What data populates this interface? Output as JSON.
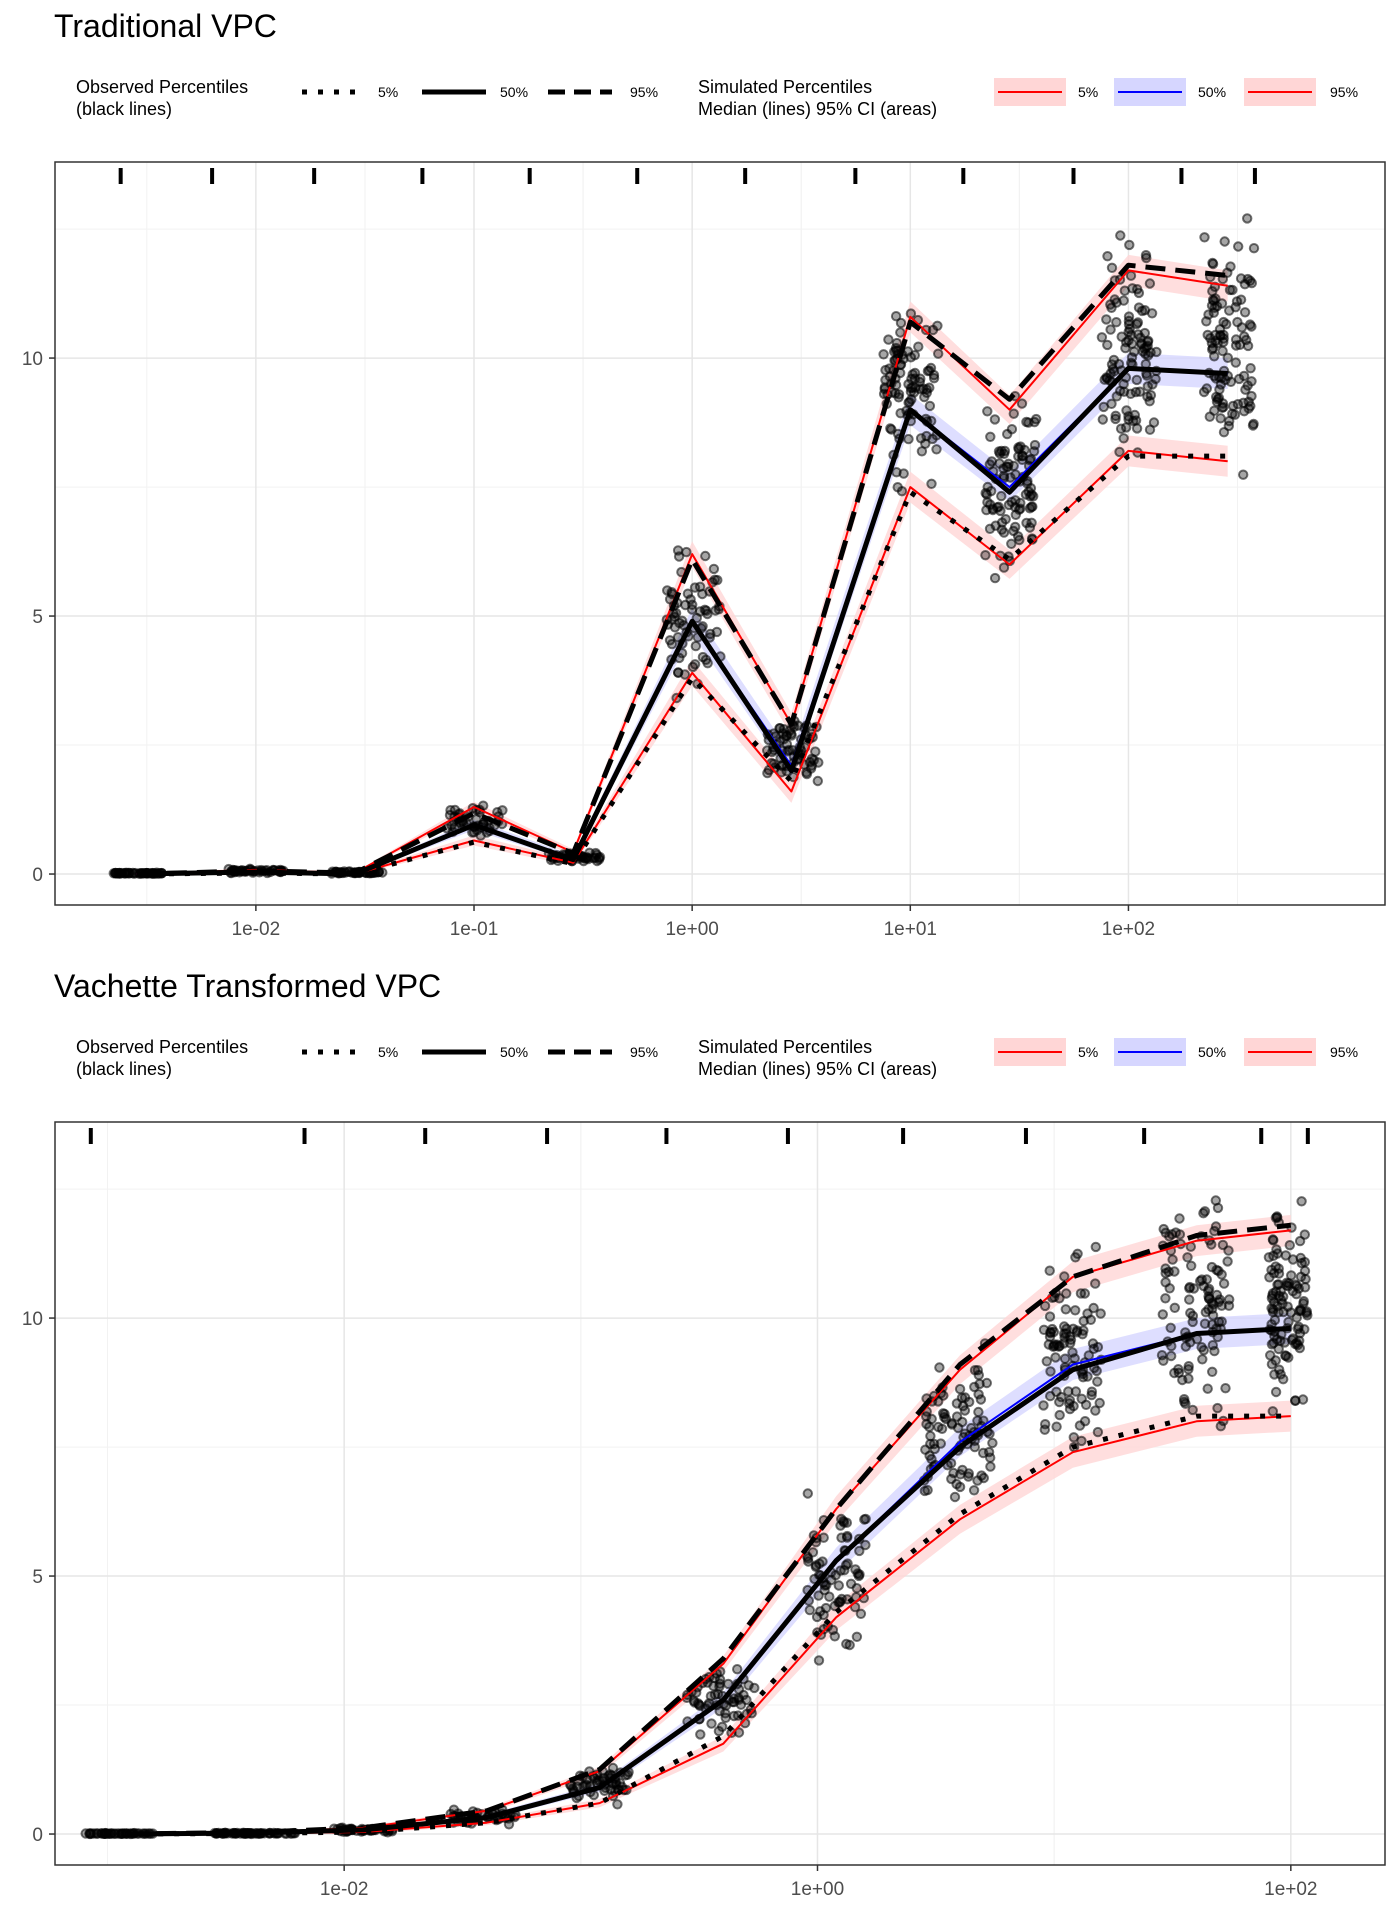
{
  "chart_data": [
    {
      "type": "line",
      "title": "Traditional VPC",
      "xlabel": "",
      "ylabel": "",
      "x_scale": "log10",
      "xlim": [
        0.0012,
        1500
      ],
      "ylim": [
        -0.6,
        13.8
      ],
      "x_ticks": [
        0.01,
        0.1,
        1,
        10,
        100
      ],
      "x_tick_labels": [
        "1e-02",
        "1e-01",
        "1e+00",
        "1e+01",
        "1e+02"
      ],
      "y_ticks": [
        0,
        5,
        10
      ],
      "y_tick_labels": [
        "0",
        "5",
        "10"
      ],
      "grid": true,
      "bin_boundaries": [
        0.0024,
        0.0063,
        0.0185,
        0.058,
        0.18,
        0.56,
        1.75,
        5.6,
        17.5,
        56,
        175,
        380
      ],
      "x": [
        0.00285,
        0.01,
        0.0285,
        0.1,
        0.285,
        1,
        2.85,
        10,
        28.5,
        100,
        285
      ],
      "observed": {
        "p5": [
          0,
          0.02,
          0,
          0.62,
          0.2,
          3.8,
          1.8,
          7.4,
          6.1,
          8.1,
          8.1
        ],
        "p50": [
          0,
          0.04,
          0,
          0.95,
          0.28,
          4.9,
          2.0,
          9.0,
          7.4,
          9.8,
          9.7
        ],
        "p95": [
          0,
          0.06,
          0.02,
          1.18,
          0.4,
          6.1,
          2.9,
          10.7,
          9.2,
          11.8,
          11.6
        ]
      },
      "simulated": {
        "p5": [
          0,
          0.02,
          0,
          0.65,
          0.22,
          3.9,
          1.6,
          7.5,
          6.0,
          8.2,
          8.0
        ],
        "p50": [
          0,
          0.04,
          0,
          0.95,
          0.3,
          4.9,
          2.1,
          9.0,
          7.5,
          9.8,
          9.7
        ],
        "p95": [
          0,
          0.08,
          0.02,
          1.3,
          0.42,
          6.2,
          2.9,
          10.8,
          9.0,
          11.7,
          11.4
        ],
        "ci_halfwidth": [
          0.02,
          0.03,
          0.02,
          0.1,
          0.06,
          0.25,
          0.22,
          0.3,
          0.28,
          0.3,
          0.3
        ]
      },
      "observed_points": {
        "groups": [
          {
            "x_range": [
              0.0022,
              0.0037
            ],
            "y_range": [
              0,
              0.03
            ],
            "n": 45
          },
          {
            "x_range": [
              0.0075,
              0.0135
            ],
            "y_range": [
              0,
              0.12
            ],
            "n": 45
          },
          {
            "x_range": [
              0.022,
              0.038
            ],
            "y_range": [
              0,
              0.06
            ],
            "n": 45
          },
          {
            "x_range": [
              0.075,
              0.135
            ],
            "y_range": [
              0.62,
              1.4
            ],
            "n": 45
          },
          {
            "x_range": [
              0.22,
              0.38
            ],
            "y_range": [
              0.18,
              0.48
            ],
            "n": 45
          },
          {
            "x_range": [
              0.75,
              1.35
            ],
            "y_range": [
              3.2,
              7.0
            ],
            "n": 70
          },
          {
            "x_range": [
              2.2,
              3.8
            ],
            "y_range": [
              1.5,
              3.4
            ],
            "n": 70
          },
          {
            "x_range": [
              7.5,
              13.5
            ],
            "y_range": [
              7.0,
              11.7
            ],
            "n": 100
          },
          {
            "x_range": [
              22,
              38
            ],
            "y_range": [
              5.1,
              10.1
            ],
            "n": 100
          },
          {
            "x_range": [
              75,
              135
            ],
            "y_range": [
              7.6,
              12.8
            ],
            "n": 110
          },
          {
            "x_range": [
              220,
              380
            ],
            "y_range": [
              7.2,
              13.2
            ],
            "n": 110
          }
        ]
      },
      "legend": {
        "observed_title": "Observed Percentiles\n(black lines)",
        "simulated_title": "Simulated Percentiles\nMedian (lines) 95% CI (areas)",
        "entries": [
          "5%",
          "50%",
          "95%"
        ]
      }
    },
    {
      "type": "line",
      "title": "Vachette Transformed VPC",
      "xlabel": "",
      "ylabel": "",
      "x_scale": "log10",
      "xlim": [
        0.0006,
        250
      ],
      "ylim": [
        -0.6,
        13.8
      ],
      "x_ticks": [
        0.01,
        1,
        100
      ],
      "x_tick_labels": [
        "1e-02",
        "1e+00",
        "1e+02"
      ],
      "y_ticks": [
        0,
        5,
        10
      ],
      "y_tick_labels": [
        "0",
        "5",
        "10"
      ],
      "grid": true,
      "bin_boundaries": [
        0.00085,
        0.0068,
        0.022,
        0.072,
        0.23,
        0.75,
        2.3,
        7.6,
        24,
        75,
        118
      ],
      "x": [
        0.0012,
        0.004,
        0.012,
        0.04,
        0.12,
        0.4,
        1.2,
        4,
        12,
        40,
        100
      ],
      "observed": {
        "p5": [
          0,
          0.01,
          0.04,
          0.22,
          0.6,
          1.9,
          4.3,
          6.2,
          7.5,
          8.1,
          8.1
        ],
        "p50": [
          0,
          0.02,
          0.08,
          0.32,
          0.9,
          2.6,
          5.3,
          7.5,
          9.0,
          9.7,
          9.8
        ],
        "p95": [
          0,
          0.03,
          0.12,
          0.45,
          1.25,
          3.4,
          6.3,
          9.1,
          10.8,
          11.6,
          11.8
        ]
      },
      "simulated": {
        "p5": [
          0,
          0.01,
          0.04,
          0.22,
          0.6,
          1.75,
          4.2,
          6.1,
          7.4,
          8.0,
          8.1
        ],
        "p50": [
          0,
          0.02,
          0.08,
          0.33,
          0.9,
          2.6,
          5.3,
          7.6,
          9.1,
          9.7,
          9.8
        ],
        "p95": [
          0,
          0.03,
          0.12,
          0.45,
          1.22,
          3.3,
          6.3,
          9.0,
          10.8,
          11.5,
          11.7
        ],
        "ci_halfwidth": [
          0.02,
          0.02,
          0.03,
          0.05,
          0.08,
          0.15,
          0.25,
          0.28,
          0.3,
          0.3,
          0.3
        ]
      },
      "observed_points": {
        "groups": [
          {
            "x_range": [
              0.0008,
              0.0016
            ],
            "y_range": [
              0,
              0.02
            ],
            "n": 45
          },
          {
            "x_range": [
              0.0028,
              0.0062
            ],
            "y_range": [
              0,
              0.03
            ],
            "n": 55
          },
          {
            "x_range": [
              0.009,
              0.016
            ],
            "y_range": [
              0.02,
              0.15
            ],
            "n": 45
          },
          {
            "x_range": [
              0.028,
              0.055
            ],
            "y_range": [
              0.12,
              0.5
            ],
            "n": 45
          },
          {
            "x_range": [
              0.09,
              0.16
            ],
            "y_range": [
              0.5,
              1.4
            ],
            "n": 55
          },
          {
            "x_range": [
              0.28,
              0.55
            ],
            "y_range": [
              1.5,
              3.6
            ],
            "n": 65
          },
          {
            "x_range": [
              0.9,
              1.6
            ],
            "y_range": [
              3.1,
              7.0
            ],
            "n": 80
          },
          {
            "x_range": [
              2.8,
              5.5
            ],
            "y_range": [
              5.6,
              9.9
            ],
            "n": 95
          },
          {
            "x_range": [
              9,
              16
            ],
            "y_range": [
              7.1,
              11.7
            ],
            "n": 100
          },
          {
            "x_range": [
              28,
              55
            ],
            "y_range": [
              7.2,
              13.1
            ],
            "n": 110
          },
          {
            "x_range": [
              80,
              118
            ],
            "y_range": [
              7.7,
              12.8
            ],
            "n": 110
          }
        ]
      },
      "legend": {
        "observed_title": "Observed Percentiles\n(black lines)",
        "simulated_title": "Simulated Percentiles\nMedian (lines) 95% CI (areas)",
        "entries": [
          "5%",
          "50%",
          "95%"
        ]
      }
    }
  ],
  "colors": {
    "outer_band": "#ff0000",
    "outer_band_fill": "#ffd6d6",
    "median_band": "#0000ff",
    "median_band_fill": "#d6d6ff",
    "observed": "#000000",
    "grid_major": "#e6e6e6",
    "grid_minor": "#f2f2f2",
    "axis_text": "#4d4d4d"
  }
}
